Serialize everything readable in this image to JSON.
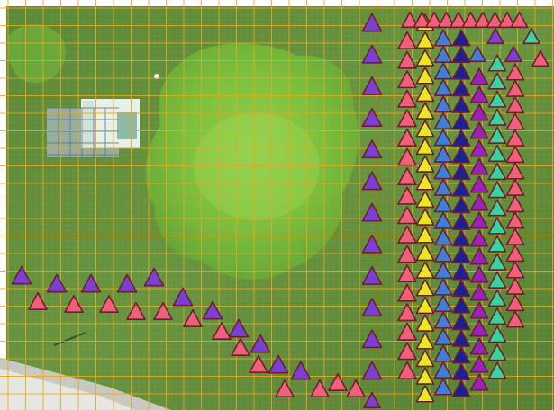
{
  "map": {
    "type": "aerial-imagery-with-grid-and-markers",
    "grid": {
      "visible": true,
      "color": "#e8a81e"
    },
    "marker_shape": "triangle",
    "marker_outline": "#6e1f2d",
    "marker_colors": {
      "purple": "#7b3fd1",
      "pink": "#f0607a",
      "yellow": "#e9e625",
      "blue": "#3f7fd9",
      "navy": "#1d1f96",
      "magenta": "#9a22b8",
      "teal": "#38d3a0"
    },
    "rows": {
      "main_purple": 12,
      "pink_left": 18,
      "yellow": 22,
      "blue": 22,
      "navy": 22,
      "magenta": 18,
      "teal": 18,
      "pink_right": 16,
      "top_pink": 10,
      "diagonal_upper": 11,
      "diagonal_lower": 13
    },
    "features": [
      "tree-canopy",
      "greenhouse-structure",
      "paved-path",
      "lawn"
    ]
  }
}
